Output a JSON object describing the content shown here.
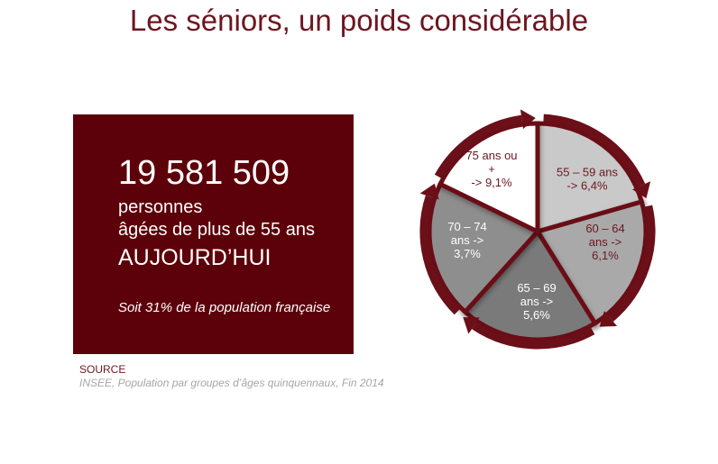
{
  "title": "Les séniors, un poids considérable",
  "panel": {
    "count": "19 581 509",
    "line1": "personnes",
    "line2": "âgées de plus de 55 ans",
    "line3": "AUJOURD’HUI",
    "line4": "Soit 31% de la population française"
  },
  "source": {
    "label": "SOURCE",
    "text": "INSEE, Population par groupes d’âges quinquennaux, Fin 2014"
  },
  "colors": {
    "accent": "#6b1720",
    "ring": "#6b0f18",
    "panel": "#5c0009"
  },
  "chart_data": {
    "type": "pie",
    "title": "",
    "slices": [
      {
        "lines": [
          "55 – 59 ans",
          "-> 6,4%"
        ],
        "value": 6.4,
        "fill": "#c9c9c9",
        "text": "#6b1720"
      },
      {
        "lines": [
          "60 – 64",
          "ans ->",
          "6,1%"
        ],
        "value": 6.1,
        "fill": "#a9a9a9",
        "text": "#6b1720"
      },
      {
        "lines": [
          "65 – 69",
          "ans ->",
          "5,6%"
        ],
        "value": 5.6,
        "fill": "#7a7a7a",
        "text": "#ffffff"
      },
      {
        "lines": [
          "70 – 74",
          "ans ->",
          "3,7%"
        ],
        "value": 3.7,
        "fill": "#8e8e8e",
        "text": "#ffffff"
      },
      {
        "lines": [
          "75 ans ou",
          "+",
          "-> 9,1%"
        ],
        "value": 9.1,
        "fill": "#ffffff",
        "text": "#6b1720"
      }
    ]
  }
}
